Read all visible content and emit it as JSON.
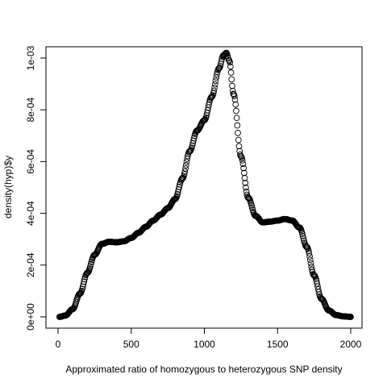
{
  "chart_data": {
    "type": "scatter",
    "title": "",
    "xlabel": "Approximated ratio of homozygous to heterozygous SNP density",
    "ylabel": "density(hyp)$y",
    "xlim": [
      0,
      2000
    ],
    "ylim": [
      0,
      0.00102
    ],
    "x_ticks": [
      0,
      500,
      1000,
      1500,
      2000
    ],
    "x_tick_labels": [
      "0",
      "500",
      "1000",
      "1500",
      "2000"
    ],
    "y_ticks": [
      0,
      0.0002,
      0.0004,
      0.0006,
      0.0008,
      0.001
    ],
    "y_tick_labels": [
      "0e+00",
      "2e-04",
      "4e-04",
      "6e-04",
      "8e-04",
      "1e-03"
    ],
    "grid": false,
    "marker": "open-circle",
    "series": [
      {
        "x": [
          10,
          50,
          100,
          150,
          200,
          250,
          300,
          350,
          400,
          450,
          500,
          550,
          600,
          650,
          700,
          750,
          800,
          850,
          900,
          950,
          1000,
          1050,
          1100,
          1130,
          1150,
          1170,
          1200,
          1250,
          1300,
          1350,
          1400,
          1450,
          1500,
          1550,
          1600,
          1650,
          1700,
          1750,
          1800,
          1850,
          1900,
          1950,
          2000
        ],
        "y": [
          0.0,
          5e-06,
          3e-05,
          9e-05,
          0.00017,
          0.00024,
          0.000282,
          0.00029,
          0.000288,
          0.000292,
          0.000305,
          0.000325,
          0.000348,
          0.000372,
          0.000395,
          0.00042,
          0.000455,
          0.000535,
          0.00064,
          0.00072,
          0.00076,
          0.00085,
          0.00096,
          0.00101,
          0.00102,
          0.00099,
          0.00086,
          0.00062,
          0.00046,
          0.00039,
          0.000365,
          0.000368,
          0.000372,
          0.000378,
          0.000372,
          0.000345,
          0.00027,
          0.00016,
          7e-05,
          2.5e-05,
          7e-06,
          2e-06,
          0.0
        ]
      }
    ]
  }
}
